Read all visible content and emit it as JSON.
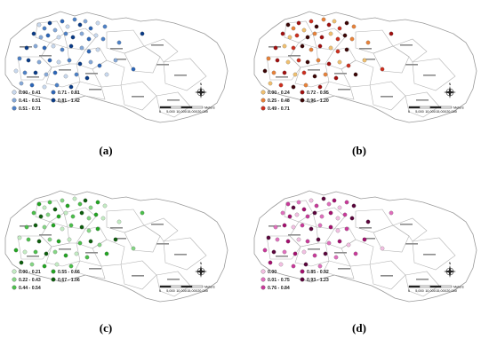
{
  "figure": {
    "panels": [
      {
        "id": "a",
        "caption": "(a)",
        "dot_color": "#1a5fb4",
        "legend": [
          {
            "label": "0.00 - 0.41",
            "color": "#c9d9ee"
          },
          {
            "label": "0.71 - 0.81",
            "color": "#2d66b7"
          },
          {
            "label": "0.41 - 0.51",
            "color": "#86a9d8"
          },
          {
            "label": "0.81 - 1.42",
            "color": "#0b3c87"
          },
          {
            "label": "0.51 - 0.71",
            "color": "#4f82c7"
          }
        ]
      },
      {
        "id": "b",
        "caption": "(b)",
        "dot_color": "#8b0000",
        "legend": [
          {
            "label": "0.00 - 0.24",
            "color": "#f0c070"
          },
          {
            "label": "0.72 - 0.95",
            "color": "#a01010"
          },
          {
            "label": "0.25 - 0.48",
            "color": "#e8823a"
          },
          {
            "label": "0.96 - 1.20",
            "color": "#3b0606"
          },
          {
            "label": "0.49 - 0.71",
            "color": "#cc3020"
          }
        ]
      },
      {
        "id": "c",
        "caption": "(c)",
        "dot_color": "#1f9a1f",
        "legend": [
          {
            "label": "0.00 - 0.21",
            "color": "#c4ecc4"
          },
          {
            "label": "0.55 - 0.66",
            "color": "#23a523"
          },
          {
            "label": "0.22 - 0.43",
            "color": "#86d686"
          },
          {
            "label": "0.67 - 1.06",
            "color": "#0e5e0e"
          },
          {
            "label": "0.44 - 0.54",
            "color": "#4cbf4c"
          }
        ]
      },
      {
        "id": "d",
        "caption": "(d)",
        "dot_color": "#b0147a",
        "legend": [
          {
            "label": "0.00",
            "color": "#f2c0e2"
          },
          {
            "label": "0.85 - 0.92",
            "color": "#a3106e"
          },
          {
            "label": "0.01 - 0.75",
            "color": "#e070bd"
          },
          {
            "label": "0.93 - 1.23",
            "color": "#5a063c"
          },
          {
            "label": "0.76 - 0.84",
            "color": "#c93a9a"
          }
        ]
      }
    ],
    "scale_bar_labels": [
      "0",
      "5,000",
      "10,000",
      "15,000",
      "20,000"
    ],
    "scale_bar_unit": "Meters",
    "compass_label": "N"
  }
}
